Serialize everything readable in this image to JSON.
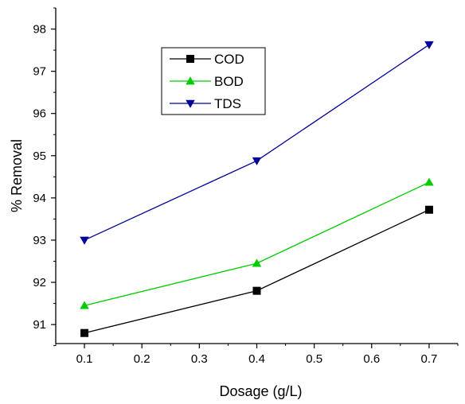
{
  "chart_data": {
    "type": "line",
    "xlabel": "Dosage (g/L)",
    "ylabel": "% Removal",
    "x": [
      0.1,
      0.4,
      0.7
    ],
    "xlim": [
      0.05,
      0.75
    ],
    "ylim": [
      90.55,
      98.5
    ],
    "x_ticks": [
      "0.1",
      "0.2",
      "0.3",
      "0.4",
      "0.5",
      "0.6",
      "0.7"
    ],
    "y_ticks": [
      "91",
      "92",
      "93",
      "94",
      "95",
      "96",
      "97",
      "98"
    ],
    "grid": false,
    "legend_position": "top-left",
    "series": [
      {
        "name": "COD",
        "values": [
          90.8,
          91.8,
          93.72
        ],
        "color": "#000000",
        "marker": "square"
      },
      {
        "name": "BOD",
        "values": [
          91.45,
          92.45,
          94.37
        ],
        "color": "#00cc00",
        "marker": "triangle-up"
      },
      {
        "name": "TDS",
        "values": [
          93.0,
          94.88,
          97.63
        ],
        "color": "#000099",
        "marker": "triangle-down"
      }
    ]
  }
}
